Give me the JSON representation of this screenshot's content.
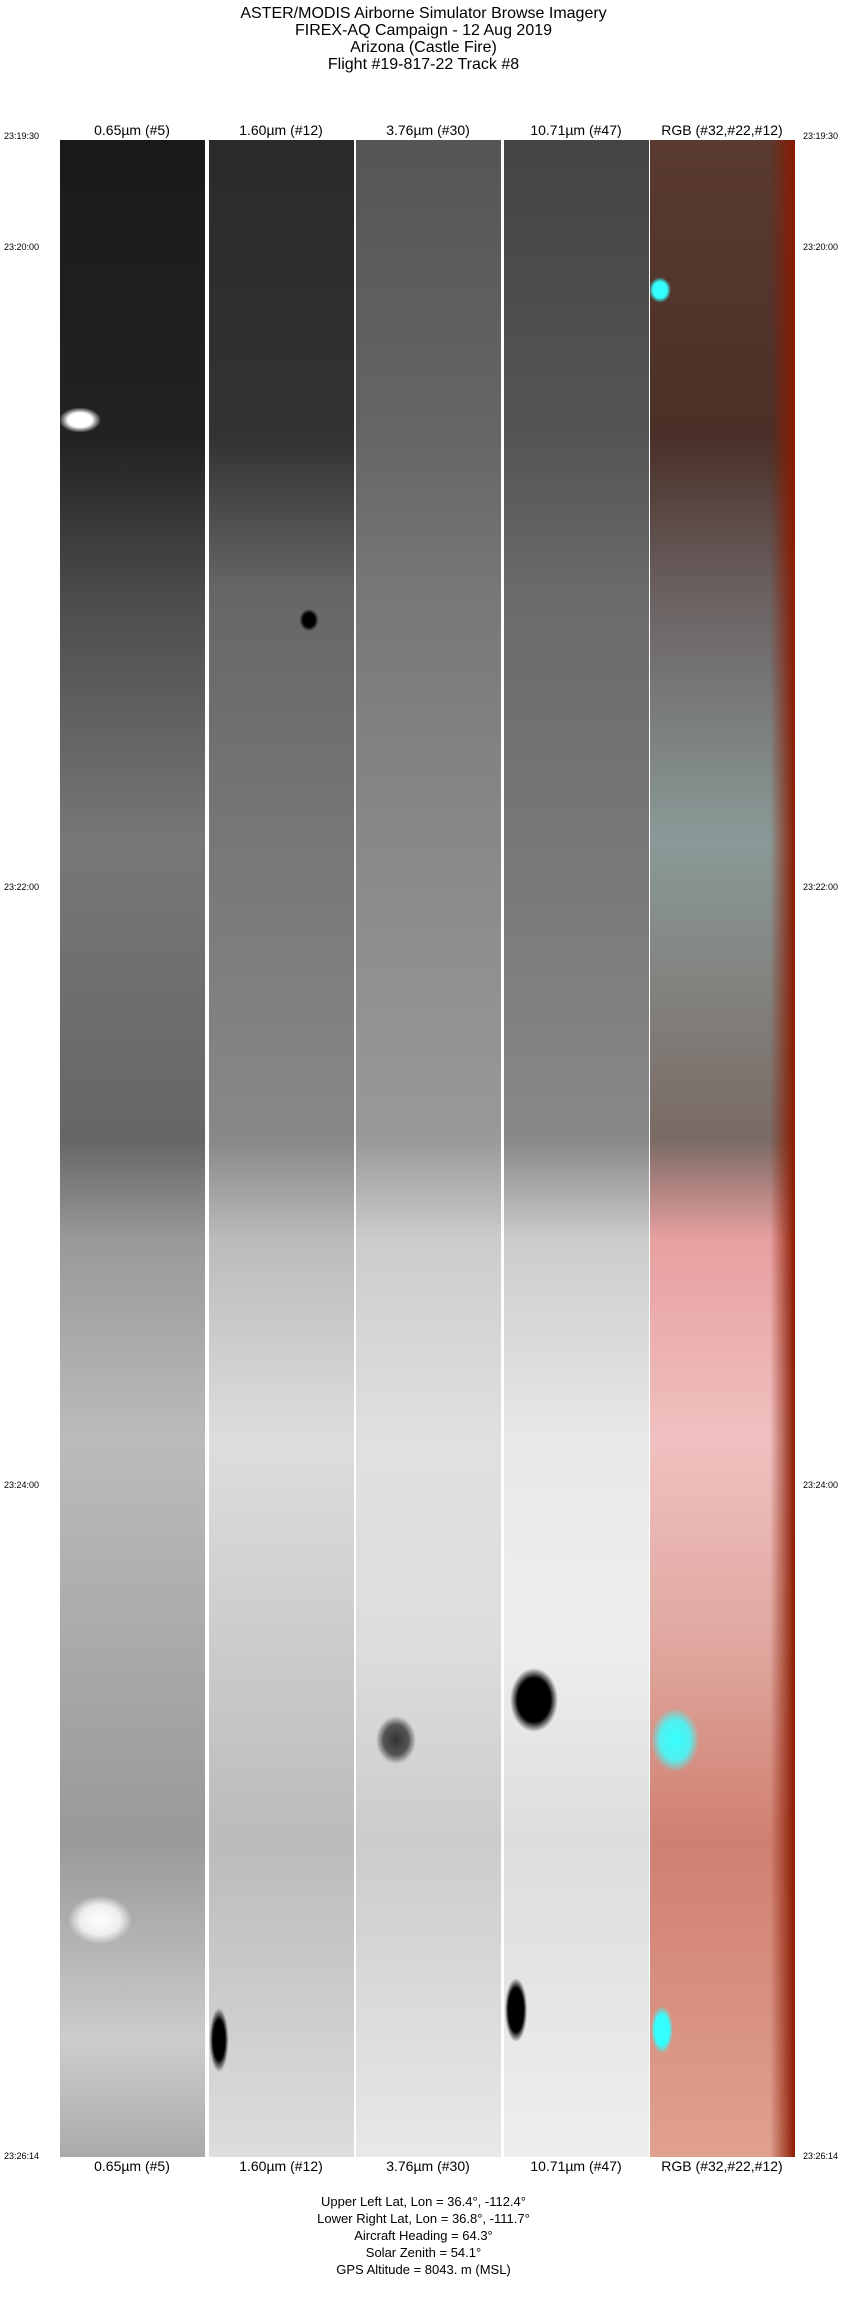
{
  "title": {
    "lines": [
      "ASTER/MODIS Airborne Simulator Browse Imagery",
      "FIREX-AQ Campaign - 12 Aug 2019",
      "Arizona (Castle Fire)",
      "Flight #19-817-22 Track #8"
    ]
  },
  "bands": [
    "0.65µm (#5)",
    "1.60µm (#12)",
    "3.76µm (#30)",
    "10.71µm (#47)",
    "RGB (#32,#22,#12)"
  ],
  "times": [
    "23:19:30",
    "23:20:00",
    "23:22:00",
    "23:24:00",
    "23:26:14"
  ],
  "info": {
    "upper_left": "Upper Left Lat, Lon =   36.4°, -112.4°",
    "lower_right": "Lower Right Lat, Lon =   36.8°, -111.7°",
    "heading": "Aircraft Heading =   64.3°",
    "solar_zenith": "Solar Zenith =   54.1°",
    "gps_altitude": "GPS Altitude =   8043. m (MSL)"
  },
  "colors": {
    "cloud_rgb": "#33ffff",
    "background": "#ffffff"
  }
}
